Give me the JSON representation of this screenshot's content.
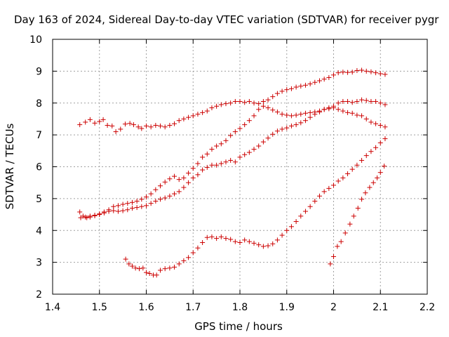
{
  "chart_data": {
    "type": "scatter",
    "title": "Day 163 of 2024, Sidereal Day-to-day VTEC variation (SDTVAR) for receiver pygr",
    "xlabel": "GPS time / hours",
    "ylabel": "SDTVAR / TECUs",
    "xlim": [
      1.4,
      2.2
    ],
    "ylim": [
      2,
      10
    ],
    "xticks": [
      "1.4",
      "1.5",
      "1.6",
      "1.7",
      "1.8",
      "1.9",
      "2",
      "2.1",
      "2.2"
    ],
    "yticks": [
      "2",
      "3",
      "4",
      "5",
      "6",
      "7",
      "8",
      "9",
      "10"
    ],
    "grid": true,
    "marker": "plus",
    "color": "#cc0000",
    "series": [
      {
        "name": "arc-A",
        "points": [
          [
            1.458,
            7.32
          ],
          [
            1.47,
            7.4
          ],
          [
            1.48,
            7.48
          ],
          [
            1.49,
            7.37
          ],
          [
            1.5,
            7.42
          ],
          [
            1.508,
            7.48
          ],
          [
            1.517,
            7.3
          ],
          [
            1.527,
            7.28
          ],
          [
            1.535,
            7.1
          ],
          [
            1.545,
            7.18
          ],
          [
            1.555,
            7.34
          ],
          [
            1.565,
            7.36
          ],
          [
            1.573,
            7.32
          ],
          [
            1.583,
            7.25
          ],
          [
            1.59,
            7.2
          ],
          [
            1.6,
            7.28
          ],
          [
            1.61,
            7.25
          ],
          [
            1.62,
            7.3
          ],
          [
            1.63,
            7.28
          ],
          [
            1.64,
            7.25
          ],
          [
            1.65,
            7.3
          ],
          [
            1.66,
            7.35
          ],
          [
            1.67,
            7.45
          ],
          [
            1.68,
            7.5
          ],
          [
            1.69,
            7.55
          ],
          [
            1.7,
            7.6
          ],
          [
            1.71,
            7.65
          ],
          [
            1.72,
            7.7
          ],
          [
            1.73,
            7.75
          ],
          [
            1.74,
            7.85
          ],
          [
            1.75,
            7.9
          ],
          [
            1.76,
            7.95
          ],
          [
            1.77,
            7.98
          ],
          [
            1.78,
            8.0
          ],
          [
            1.79,
            8.05
          ],
          [
            1.8,
            8.05
          ],
          [
            1.81,
            8.02
          ],
          [
            1.82,
            8.05
          ],
          [
            1.83,
            8.0
          ],
          [
            1.84,
            7.98
          ],
          [
            1.85,
            8.05
          ],
          [
            1.86,
            8.1
          ],
          [
            1.87,
            8.2
          ],
          [
            1.88,
            8.3
          ],
          [
            1.89,
            8.37
          ],
          [
            1.9,
            8.42
          ],
          [
            1.91,
            8.45
          ],
          [
            1.92,
            8.5
          ],
          [
            1.93,
            8.53
          ],
          [
            1.94,
            8.56
          ],
          [
            1.95,
            8.6
          ],
          [
            1.96,
            8.65
          ],
          [
            1.97,
            8.7
          ],
          [
            1.98,
            8.75
          ],
          [
            1.99,
            8.8
          ],
          [
            2.0,
            8.88
          ],
          [
            2.01,
            8.95
          ],
          [
            2.02,
            8.97
          ],
          [
            2.03,
            8.96
          ],
          [
            2.04,
            8.97
          ],
          [
            2.05,
            9.02
          ],
          [
            2.06,
            9.03
          ],
          [
            2.07,
            9.0
          ],
          [
            2.08,
            8.98
          ],
          [
            2.09,
            8.95
          ],
          [
            2.1,
            8.92
          ],
          [
            2.11,
            8.9
          ]
        ]
      },
      {
        "name": "arc-B",
        "points": [
          [
            1.458,
            4.58
          ],
          [
            1.465,
            4.45
          ],
          [
            1.473,
            4.4
          ],
          [
            1.48,
            4.42
          ],
          [
            1.49,
            4.46
          ],
          [
            1.5,
            4.5
          ],
          [
            1.51,
            4.58
          ],
          [
            1.52,
            4.65
          ],
          [
            1.53,
            4.75
          ],
          [
            1.54,
            4.78
          ],
          [
            1.55,
            4.82
          ],
          [
            1.56,
            4.85
          ],
          [
            1.57,
            4.88
          ],
          [
            1.58,
            4.92
          ],
          [
            1.59,
            4.98
          ],
          [
            1.6,
            5.05
          ],
          [
            1.61,
            5.15
          ],
          [
            1.62,
            5.28
          ],
          [
            1.63,
            5.4
          ],
          [
            1.64,
            5.52
          ],
          [
            1.65,
            5.62
          ],
          [
            1.66,
            5.7
          ],
          [
            1.67,
            5.6
          ],
          [
            1.68,
            5.65
          ],
          [
            1.69,
            5.8
          ],
          [
            1.7,
            5.95
          ],
          [
            1.71,
            6.1
          ],
          [
            1.72,
            6.3
          ],
          [
            1.73,
            6.4
          ],
          [
            1.74,
            6.55
          ],
          [
            1.75,
            6.65
          ],
          [
            1.76,
            6.72
          ],
          [
            1.77,
            6.82
          ],
          [
            1.78,
            6.98
          ],
          [
            1.79,
            7.1
          ],
          [
            1.8,
            7.2
          ],
          [
            1.81,
            7.32
          ],
          [
            1.82,
            7.45
          ],
          [
            1.83,
            7.6
          ],
          [
            1.84,
            7.8
          ],
          [
            1.85,
            7.9
          ],
          [
            1.86,
            7.85
          ],
          [
            1.87,
            7.78
          ],
          [
            1.88,
            7.72
          ],
          [
            1.89,
            7.65
          ],
          [
            1.9,
            7.62
          ],
          [
            1.91,
            7.6
          ],
          [
            1.92,
            7.62
          ],
          [
            1.93,
            7.65
          ],
          [
            1.94,
            7.68
          ],
          [
            1.95,
            7.7
          ],
          [
            1.96,
            7.72
          ],
          [
            1.97,
            7.75
          ],
          [
            1.98,
            7.8
          ],
          [
            1.99,
            7.82
          ],
          [
            2.0,
            7.85
          ],
          [
            2.01,
            7.8
          ],
          [
            2.02,
            7.75
          ],
          [
            2.03,
            7.7
          ],
          [
            2.04,
            7.68
          ],
          [
            2.05,
            7.62
          ],
          [
            2.06,
            7.6
          ],
          [
            2.07,
            7.5
          ],
          [
            2.08,
            7.4
          ],
          [
            2.09,
            7.35
          ],
          [
            2.1,
            7.3
          ],
          [
            2.11,
            7.25
          ]
        ]
      },
      {
        "name": "arc-C",
        "points": [
          [
            1.46,
            4.4
          ],
          [
            1.47,
            4.42
          ],
          [
            1.48,
            4.45
          ],
          [
            1.49,
            4.48
          ],
          [
            1.5,
            4.52
          ],
          [
            1.51,
            4.55
          ],
          [
            1.52,
            4.6
          ],
          [
            1.53,
            4.62
          ],
          [
            1.54,
            4.6
          ],
          [
            1.55,
            4.62
          ],
          [
            1.56,
            4.65
          ],
          [
            1.57,
            4.7
          ],
          [
            1.58,
            4.72
          ],
          [
            1.59,
            4.75
          ],
          [
            1.6,
            4.78
          ],
          [
            1.61,
            4.85
          ],
          [
            1.62,
            4.92
          ],
          [
            1.63,
            4.98
          ],
          [
            1.64,
            5.02
          ],
          [
            1.65,
            5.08
          ],
          [
            1.66,
            5.15
          ],
          [
            1.67,
            5.22
          ],
          [
            1.68,
            5.35
          ],
          [
            1.69,
            5.5
          ],
          [
            1.7,
            5.65
          ],
          [
            1.71,
            5.75
          ],
          [
            1.72,
            5.9
          ],
          [
            1.73,
            5.98
          ],
          [
            1.74,
            6.05
          ],
          [
            1.75,
            6.05
          ],
          [
            1.76,
            6.1
          ],
          [
            1.77,
            6.15
          ],
          [
            1.78,
            6.2
          ],
          [
            1.79,
            6.15
          ],
          [
            1.8,
            6.3
          ],
          [
            1.81,
            6.38
          ],
          [
            1.82,
            6.45
          ],
          [
            1.83,
            6.55
          ],
          [
            1.84,
            6.65
          ],
          [
            1.85,
            6.78
          ],
          [
            1.86,
            6.9
          ],
          [
            1.87,
            7.02
          ],
          [
            1.88,
            7.12
          ],
          [
            1.89,
            7.18
          ],
          [
            1.9,
            7.22
          ],
          [
            1.91,
            7.28
          ],
          [
            1.92,
            7.32
          ],
          [
            1.93,
            7.38
          ],
          [
            1.94,
            7.45
          ],
          [
            1.95,
            7.55
          ],
          [
            1.96,
            7.65
          ],
          [
            1.97,
            7.72
          ],
          [
            1.98,
            7.8
          ],
          [
            1.99,
            7.85
          ],
          [
            2.0,
            7.9
          ],
          [
            2.01,
            8.0
          ],
          [
            2.02,
            8.05
          ],
          [
            2.03,
            8.05
          ],
          [
            2.04,
            8.02
          ],
          [
            2.05,
            8.05
          ],
          [
            2.06,
            8.1
          ],
          [
            2.07,
            8.08
          ],
          [
            2.08,
            8.05
          ],
          [
            2.09,
            8.05
          ],
          [
            2.1,
            8.0
          ],
          [
            2.11,
            7.95
          ]
        ]
      },
      {
        "name": "arc-D",
        "points": [
          [
            1.556,
            3.1
          ],
          [
            1.563,
            2.95
          ],
          [
            1.57,
            2.88
          ],
          [
            1.577,
            2.82
          ],
          [
            1.585,
            2.8
          ],
          [
            1.593,
            2.82
          ],
          [
            1.6,
            2.68
          ],
          [
            1.607,
            2.65
          ],
          [
            1.615,
            2.6
          ],
          [
            1.622,
            2.6
          ],
          [
            1.63,
            2.75
          ],
          [
            1.64,
            2.8
          ],
          [
            1.65,
            2.82
          ],
          [
            1.66,
            2.85
          ],
          [
            1.67,
            2.95
          ],
          [
            1.68,
            3.05
          ],
          [
            1.69,
            3.15
          ],
          [
            1.7,
            3.3
          ],
          [
            1.71,
            3.45
          ],
          [
            1.72,
            3.62
          ],
          [
            1.73,
            3.78
          ],
          [
            1.74,
            3.8
          ],
          [
            1.75,
            3.75
          ],
          [
            1.76,
            3.8
          ],
          [
            1.77,
            3.75
          ],
          [
            1.78,
            3.72
          ],
          [
            1.79,
            3.65
          ],
          [
            1.8,
            3.62
          ],
          [
            1.81,
            3.7
          ],
          [
            1.82,
            3.65
          ],
          [
            1.83,
            3.6
          ],
          [
            1.84,
            3.55
          ],
          [
            1.85,
            3.5
          ],
          [
            1.86,
            3.52
          ],
          [
            1.87,
            3.58
          ],
          [
            1.88,
            3.7
          ],
          [
            1.89,
            3.85
          ],
          [
            1.9,
            4.0
          ],
          [
            1.91,
            4.12
          ],
          [
            1.92,
            4.28
          ],
          [
            1.93,
            4.45
          ],
          [
            1.94,
            4.6
          ],
          [
            1.95,
            4.75
          ],
          [
            1.96,
            4.92
          ],
          [
            1.97,
            5.08
          ],
          [
            1.98,
            5.22
          ],
          [
            1.99,
            5.32
          ],
          [
            2.0,
            5.42
          ],
          [
            2.01,
            5.55
          ],
          [
            2.02,
            5.65
          ],
          [
            2.03,
            5.78
          ],
          [
            2.04,
            5.92
          ],
          [
            2.05,
            6.05
          ],
          [
            2.06,
            6.2
          ],
          [
            2.07,
            6.35
          ],
          [
            2.08,
            6.48
          ],
          [
            2.09,
            6.6
          ],
          [
            2.1,
            6.75
          ],
          [
            2.11,
            6.88
          ]
        ]
      },
      {
        "name": "arc-E",
        "points": [
          [
            1.993,
            2.95
          ],
          [
            2.0,
            3.18
          ],
          [
            2.008,
            3.5
          ],
          [
            2.016,
            3.65
          ],
          [
            2.025,
            3.92
          ],
          [
            2.035,
            4.2
          ],
          [
            2.043,
            4.45
          ],
          [
            2.052,
            4.7
          ],
          [
            2.06,
            4.98
          ],
          [
            2.068,
            5.18
          ],
          [
            2.077,
            5.35
          ],
          [
            2.085,
            5.5
          ],
          [
            2.093,
            5.65
          ],
          [
            2.1,
            5.82
          ],
          [
            2.108,
            6.02
          ]
        ]
      }
    ]
  }
}
